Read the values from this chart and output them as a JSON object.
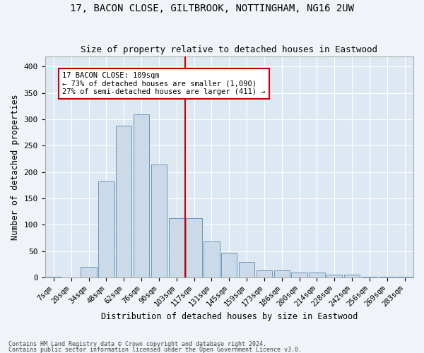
{
  "title1": "17, BACON CLOSE, GILTBROOK, NOTTINGHAM, NG16 2UW",
  "title2": "Size of property relative to detached houses in Eastwood",
  "xlabel": "Distribution of detached houses by size in Eastwood",
  "ylabel": "Number of detached properties",
  "bar_labels": [
    "7sqm",
    "20sqm",
    "34sqm",
    "48sqm",
    "62sqm",
    "76sqm",
    "90sqm",
    "103sqm",
    "117sqm",
    "131sqm",
    "145sqm",
    "159sqm",
    "173sqm",
    "186sqm",
    "200sqm",
    "214sqm",
    "228sqm",
    "242sqm",
    "256sqm",
    "269sqm",
    "283sqm"
  ],
  "bar_values": [
    2,
    0,
    20,
    183,
    288,
    310,
    215,
    113,
    113,
    68,
    47,
    30,
    13,
    13,
    10,
    10,
    5,
    5,
    2,
    2,
    2
  ],
  "bar_color": "#ccd9e8",
  "bar_edge_color": "#6699bb",
  "background_color": "#dde8f3",
  "grid_color": "#ffffff",
  "vline_x": 7.5,
  "vline_color": "#cc0000",
  "annotation_text": "17 BACON CLOSE: 109sqm\n← 73% of detached houses are smaller (1,090)\n27% of semi-detached houses are larger (411) →",
  "annotation_box_color": "#ffffff",
  "annotation_box_edge": "#cc0000",
  "ylim": [
    0,
    420
  ],
  "yticks": [
    0,
    50,
    100,
    150,
    200,
    250,
    300,
    350,
    400
  ],
  "footer1": "Contains HM Land Registry data © Crown copyright and database right 2024.",
  "footer2": "Contains public sector information licensed under the Open Government Licence v3.0."
}
